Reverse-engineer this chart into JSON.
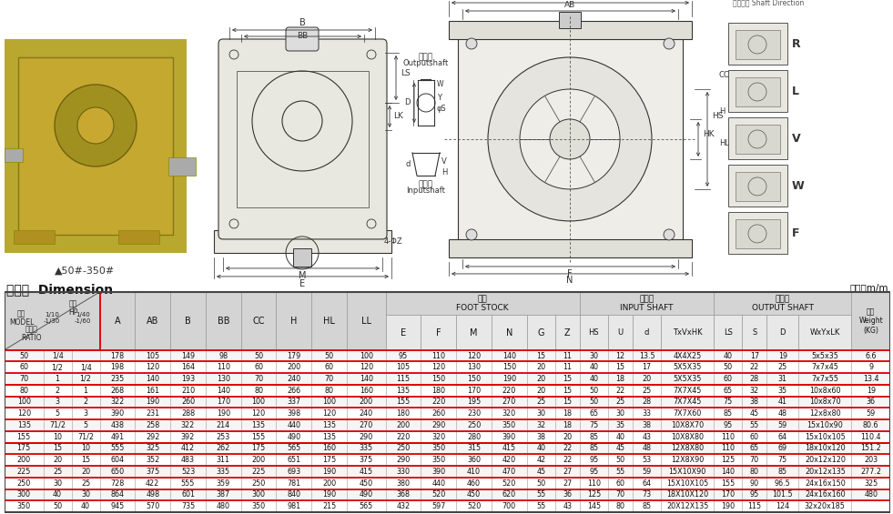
{
  "title_cn": "尺寸表  Dimension",
  "unit": "单位：m/m",
  "rows": [
    [
      "50",
      "1/4",
      "",
      "178",
      "105",
      "149",
      "98",
      "50",
      "179",
      "50",
      "100",
      "95",
      "110",
      "120",
      "140",
      "15",
      "11",
      "30",
      "12",
      "13.5",
      "4X4X25",
      "40",
      "17",
      "19",
      "5x5x35",
      "6.6"
    ],
    [
      "60",
      "1/2",
      "1/4",
      "198",
      "120",
      "164",
      "110",
      "60",
      "200",
      "60",
      "120",
      "105",
      "120",
      "130",
      "150",
      "20",
      "11",
      "40",
      "15",
      "17",
      "5X5X35",
      "50",
      "22",
      "25",
      "7x7x45",
      "9"
    ],
    [
      "70",
      "1",
      "1/2",
      "235",
      "140",
      "193",
      "130",
      "70",
      "240",
      "70",
      "140",
      "115",
      "150",
      "150",
      "190",
      "20",
      "15",
      "40",
      "18",
      "20",
      "5X5X35",
      "60",
      "28",
      "31",
      "7x7x55",
      "13.4"
    ],
    [
      "80",
      "2",
      "1",
      "268",
      "161",
      "210",
      "140",
      "80",
      "266",
      "80",
      "160",
      "135",
      "180",
      "170",
      "220",
      "20",
      "15",
      "50",
      "22",
      "25",
      "7X7X45",
      "65",
      "32",
      "35",
      "10x8x60",
      "19"
    ],
    [
      "100",
      "3",
      "2",
      "322",
      "190",
      "260",
      "170",
      "100",
      "337",
      "100",
      "200",
      "155",
      "220",
      "195",
      "270",
      "25",
      "15",
      "50",
      "25",
      "28",
      "7X7X45",
      "75",
      "38",
      "41",
      "10x8x70",
      "36"
    ],
    [
      "120",
      "5",
      "3",
      "390",
      "231",
      "288",
      "190",
      "120",
      "398",
      "120",
      "240",
      "180",
      "260",
      "230",
      "320",
      "30",
      "18",
      "65",
      "30",
      "33",
      "7X7X60",
      "85",
      "45",
      "48",
      "12x8x80",
      "59"
    ],
    [
      "135",
      "71/2",
      "5",
      "438",
      "258",
      "322",
      "214",
      "135",
      "440",
      "135",
      "270",
      "200",
      "290",
      "250",
      "350",
      "32",
      "18",
      "75",
      "35",
      "38",
      "10X8X70",
      "95",
      "55",
      "59",
      "15x10x90",
      "80.6"
    ],
    [
      "155",
      "10",
      "71/2",
      "491",
      "292",
      "392",
      "253",
      "155",
      "490",
      "135",
      "290",
      "220",
      "320",
      "280",
      "390",
      "38",
      "20",
      "85",
      "40",
      "43",
      "10X8X80",
      "110",
      "60",
      "64",
      "15x10x105",
      "110.4"
    ],
    [
      "175",
      "15",
      "10",
      "555",
      "325",
      "412",
      "262",
      "175",
      "565",
      "160",
      "335",
      "250",
      "350",
      "315",
      "415",
      "40",
      "22",
      "85",
      "45",
      "48",
      "12X8X80",
      "110",
      "65",
      "69",
      "18x10x120",
      "151.2"
    ],
    [
      "200",
      "20",
      "15",
      "604",
      "352",
      "483",
      "311",
      "200",
      "651",
      "175",
      "375",
      "290",
      "350",
      "360",
      "420",
      "42",
      "22",
      "95",
      "50",
      "53",
      "12X8X90",
      "125",
      "70",
      "75",
      "20x12x120",
      "203"
    ],
    [
      "225",
      "25",
      "20",
      "650",
      "375",
      "523",
      "335",
      "225",
      "693",
      "190",
      "415",
      "330",
      "390",
      "410",
      "470",
      "45",
      "27",
      "95",
      "55",
      "59",
      "15X10X90",
      "140",
      "80",
      "85",
      "20x12x135",
      "277.2"
    ],
    [
      "250",
      "30",
      "25",
      "728",
      "422",
      "555",
      "359",
      "250",
      "781",
      "200",
      "450",
      "380",
      "440",
      "460",
      "520",
      "50",
      "27",
      "110",
      "60",
      "64",
      "15X10X105",
      "155",
      "90",
      "96.5",
      "24x16x150",
      "325"
    ],
    [
      "300",
      "40",
      "30",
      "864",
      "498",
      "601",
      "387",
      "300",
      "840",
      "190",
      "490",
      "368",
      "520",
      "450",
      "620",
      "55",
      "36",
      "125",
      "70",
      "73",
      "18X10X120",
      "170",
      "95",
      "101.5",
      "24x16x160",
      "480"
    ],
    [
      "350",
      "50",
      "40",
      "945",
      "570",
      "735",
      "480",
      "350",
      "981",
      "215",
      "565",
      "432",
      "597",
      "520",
      "700",
      "55",
      "43",
      "145",
      "80",
      "85",
      "20X12X135",
      "190",
      "115",
      "124",
      "32x20x185",
      ""
    ]
  ],
  "red_rows": [
    0,
    2,
    3,
    5,
    7,
    8,
    10,
    12
  ],
  "bg_color": "#ffffff",
  "hdr_color": "#d4d4d4",
  "hdr_color2": "#e8e8e8",
  "photo_color": "#b8a830",
  "drawing_bg": "#f5f5f0"
}
